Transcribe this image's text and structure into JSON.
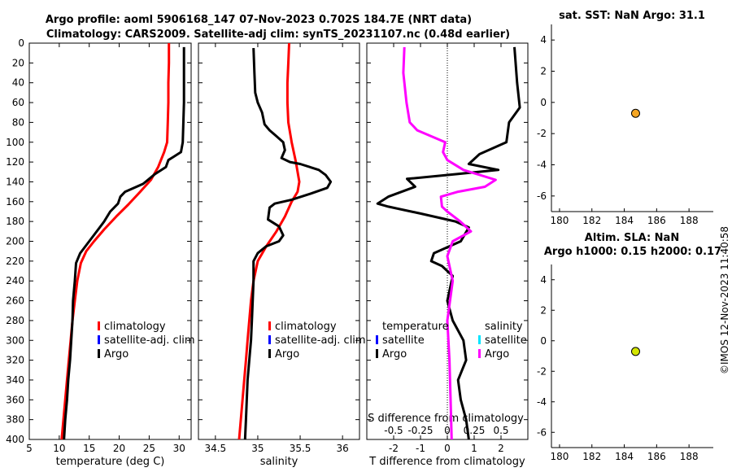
{
  "title": {
    "line1": "Argo profile: aoml 5906168_147 07-Nov-2023 0.702S 184.7E (NRT data)",
    "line2": "Climatology: CARS2009. Satellite-adj clim: synTS_20231107.nc (0.48d earlier)"
  },
  "timestamp": "©IMOS 12-Nov-2023 11:40:58",
  "colors": {
    "climatology": "#ff0000",
    "satellite": "#0000ff",
    "argo": "#000000",
    "sat_salinity": "#00e5ff",
    "argo_salinity_diff": "#ff00ff",
    "sst_marker": "#f5a623",
    "sla_marker": "#d4e600"
  },
  "chart_data": [
    {
      "id": "temperature",
      "type": "line",
      "xlabel": "temperature (deg C)",
      "ylabel": "",
      "xlim": [
        5,
        32
      ],
      "ylim": [
        400,
        0
      ],
      "xticks": [
        5,
        10,
        15,
        20,
        25,
        30
      ],
      "yticks": [
        0,
        20,
        40,
        60,
        80,
        100,
        120,
        140,
        160,
        180,
        200,
        220,
        240,
        260,
        280,
        300,
        320,
        340,
        360,
        380,
        400
      ],
      "legend": [
        "climatology",
        "satellite-adj. clim",
        "Argo"
      ],
      "series": [
        {
          "name": "climatology",
          "color": "#ff0000",
          "points": [
            [
              28.3,
              0
            ],
            [
              28.3,
              20
            ],
            [
              28.2,
              40
            ],
            [
              28.2,
              60
            ],
            [
              28.1,
              80
            ],
            [
              28.0,
              100
            ],
            [
              27.5,
              110
            ],
            [
              26.5,
              125
            ],
            [
              25.3,
              138
            ],
            [
              23.5,
              150
            ],
            [
              21.5,
              163
            ],
            [
              19.5,
              175
            ],
            [
              17.5,
              188
            ],
            [
              15.8,
              200
            ],
            [
              14.5,
              210
            ],
            [
              13.6,
              222
            ],
            [
              13.0,
              240
            ],
            [
              12.6,
              260
            ],
            [
              12.2,
              280
            ],
            [
              11.9,
              300
            ],
            [
              11.6,
              320
            ],
            [
              11.3,
              340
            ],
            [
              11.0,
              360
            ],
            [
              10.7,
              380
            ],
            [
              10.4,
              400
            ]
          ]
        },
        {
          "name": "Argo",
          "color": "#000000",
          "points": [
            [
              30.8,
              4
            ],
            [
              30.8,
              60
            ],
            [
              30.6,
              100
            ],
            [
              30.3,
              110
            ],
            [
              29.0,
              115
            ],
            [
              28.2,
              118
            ],
            [
              27.8,
              125
            ],
            [
              26.0,
              132
            ],
            [
              25.0,
              137
            ],
            [
              24.0,
              142
            ],
            [
              22.5,
              146
            ],
            [
              21.0,
              150
            ],
            [
              20.2,
              155
            ],
            [
              19.8,
              162
            ],
            [
              18.5,
              170
            ],
            [
              17.5,
              180
            ],
            [
              16.5,
              188
            ],
            [
              15.5,
              196
            ],
            [
              14.5,
              204
            ],
            [
              13.5,
              212
            ],
            [
              12.8,
              222
            ],
            [
              12.6,
              240
            ],
            [
              12.3,
              260
            ],
            [
              12.2,
              280
            ],
            [
              12.0,
              300
            ],
            [
              11.8,
              320
            ],
            [
              11.5,
              340
            ],
            [
              11.3,
              360
            ],
            [
              11.0,
              380
            ],
            [
              10.8,
              400
            ]
          ]
        }
      ]
    },
    {
      "id": "salinity",
      "type": "line",
      "xlabel": "salinity",
      "xlim": [
        34.3,
        36.2
      ],
      "ylim": [
        400,
        0
      ],
      "xticks": [
        34.5,
        35,
        35.5,
        36
      ],
      "legend": [
        "climatology",
        "satellite-adj. clim",
        "Argo"
      ],
      "series": [
        {
          "name": "climatology",
          "color": "#ff0000",
          "points": [
            [
              35.37,
              0
            ],
            [
              35.36,
              20
            ],
            [
              35.35,
              40
            ],
            [
              35.35,
              60
            ],
            [
              35.36,
              80
            ],
            [
              35.4,
              100
            ],
            [
              35.45,
              120
            ],
            [
              35.49,
              140
            ],
            [
              35.47,
              150
            ],
            [
              35.4,
              160
            ],
            [
              35.32,
              175
            ],
            [
              35.22,
              190
            ],
            [
              35.1,
              205
            ],
            [
              35.0,
              220
            ],
            [
              34.95,
              240
            ],
            [
              34.92,
              260
            ],
            [
              34.9,
              280
            ],
            [
              34.88,
              300
            ],
            [
              34.86,
              320
            ],
            [
              34.84,
              340
            ],
            [
              34.82,
              360
            ],
            [
              34.8,
              380
            ],
            [
              34.78,
              400
            ]
          ]
        },
        {
          "name": "Argo",
          "color": "#000000",
          "points": [
            [
              34.95,
              5
            ],
            [
              34.96,
              30
            ],
            [
              34.97,
              50
            ],
            [
              35.0,
              60
            ],
            [
              35.05,
              70
            ],
            [
              35.08,
              82
            ],
            [
              35.14,
              88
            ],
            [
              35.22,
              94
            ],
            [
              35.3,
              100
            ],
            [
              35.32,
              108
            ],
            [
              35.28,
              116
            ],
            [
              35.38,
              120
            ],
            [
              35.5,
              122
            ],
            [
              35.72,
              128
            ],
            [
              35.8,
              133
            ],
            [
              35.86,
              140
            ],
            [
              35.82,
              146
            ],
            [
              35.62,
              152
            ],
            [
              35.4,
              158
            ],
            [
              35.2,
              162
            ],
            [
              35.14,
              166
            ],
            [
              35.12,
              178
            ],
            [
              35.25,
              185
            ],
            [
              35.3,
              194
            ],
            [
              35.25,
              200
            ],
            [
              35.1,
              205
            ],
            [
              35.0,
              212
            ],
            [
              34.95,
              220
            ],
            [
              34.95,
              240
            ],
            [
              34.94,
              260
            ],
            [
              34.93,
              280
            ],
            [
              34.92,
              300
            ],
            [
              34.9,
              320
            ],
            [
              34.88,
              340
            ],
            [
              34.87,
              360
            ],
            [
              34.86,
              380
            ],
            [
              34.85,
              400
            ]
          ]
        }
      ]
    },
    {
      "id": "difference",
      "type": "line",
      "xlabel": "T difference from climatology",
      "x2label": "S difference from climatology",
      "xlim": [
        -3,
        3
      ],
      "x2lim": [
        -0.75,
        0.75
      ],
      "ylim": [
        400,
        0
      ],
      "xticks": [
        -2,
        -1,
        0,
        1,
        2
      ],
      "x2ticks": [
        "-0.5",
        "-0.25",
        "0",
        "0.25",
        "0.5"
      ],
      "legend": {
        "temperature_head": "temperature",
        "salinity_head": "salinity",
        "temp_items": [
          "satellite",
          "Argo"
        ],
        "sal_items": [
          "satellite",
          "Argo"
        ]
      },
      "series": [
        {
          "name": "T difference (Argo)",
          "color": "#000000",
          "points": [
            [
              2.5,
              4
            ],
            [
              2.6,
              40
            ],
            [
              2.7,
              65
            ],
            [
              2.3,
              80
            ],
            [
              2.2,
              100
            ],
            [
              1.2,
              112
            ],
            [
              0.8,
              122
            ],
            [
              1.9,
              128
            ],
            [
              0.4,
              132
            ],
            [
              -1.5,
              137
            ],
            [
              -1.2,
              145
            ],
            [
              -2.2,
              155
            ],
            [
              -2.6,
              162
            ],
            [
              -2.2,
              165
            ],
            [
              -1.0,
              172
            ],
            [
              0.3,
              180
            ],
            [
              0.8,
              186
            ],
            [
              0.5,
              200
            ],
            [
              -0.5,
              212
            ],
            [
              -0.6,
              220
            ],
            [
              -0.2,
              225
            ],
            [
              0.2,
              235
            ],
            [
              0.0,
              260
            ],
            [
              0.2,
              280
            ],
            [
              0.6,
              300
            ],
            [
              0.7,
              320
            ],
            [
              0.4,
              340
            ],
            [
              0.5,
              360
            ],
            [
              0.7,
              380
            ],
            [
              0.8,
              400
            ]
          ]
        },
        {
          "name": "S difference (Argo)",
          "color": "#ff00ff",
          "points": [
            [
              -0.4,
              4
            ],
            [
              -0.41,
              30
            ],
            [
              -0.38,
              60
            ],
            [
              -0.35,
              80
            ],
            [
              -0.28,
              88
            ],
            [
              -0.02,
              100
            ],
            [
              -0.04,
              110
            ],
            [
              0.0,
              118
            ],
            [
              0.15,
              128
            ],
            [
              0.45,
              138
            ],
            [
              0.35,
              145
            ],
            [
              0.1,
              150
            ],
            [
              -0.06,
              155
            ],
            [
              -0.05,
              165
            ],
            [
              0.0,
              170
            ],
            [
              0.12,
              180
            ],
            [
              0.22,
              190
            ],
            [
              0.05,
              200
            ],
            [
              0.0,
              215
            ],
            [
              0.05,
              240
            ],
            [
              0.0,
              280
            ],
            [
              0.02,
              320
            ],
            [
              0.03,
              360
            ],
            [
              0.04,
              400
            ]
          ]
        }
      ]
    },
    {
      "id": "sst",
      "type": "scatter",
      "title": "sat. SST: NaN Argo: 31.1",
      "xlim": [
        179.5,
        189.5
      ],
      "ylim": [
        -7,
        5
      ],
      "xticks": [
        180,
        182,
        184,
        186,
        188
      ],
      "yticks": [
        -6,
        -4,
        -2,
        0,
        2,
        4
      ],
      "points": [
        [
          184.7,
          -0.7
        ]
      ]
    },
    {
      "id": "sla",
      "type": "scatter",
      "title": "Altim. SLA: NaN",
      "subtitle": "Argo h1000: 0.15 h2000: 0.17",
      "xlim": [
        179.5,
        189.5
      ],
      "ylim": [
        -7,
        5
      ],
      "xticks": [
        180,
        182,
        184,
        186,
        188
      ],
      "yticks": [
        -6,
        -4,
        -2,
        0,
        2,
        4
      ],
      "points": [
        [
          184.7,
          -0.7
        ]
      ]
    }
  ]
}
